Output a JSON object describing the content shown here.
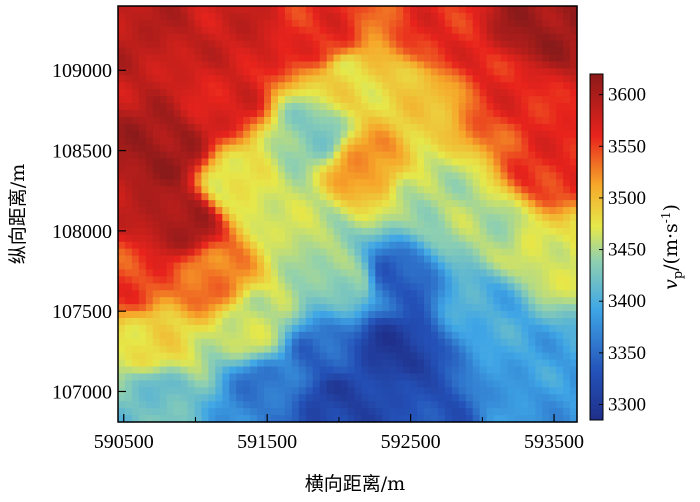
{
  "chart_data": {
    "type": "heatmap",
    "title": "",
    "xlabel": "横向距离/m",
    "ylabel": "纵向距离/m",
    "x_ticks": [
      590500,
      591500,
      592500,
      593500
    ],
    "y_ticks": [
      107000,
      107500,
      108000,
      108500,
      109000
    ],
    "xlim": [
      590460,
      593660
    ],
    "ylim": [
      106810,
      109400
    ],
    "colorbar": {
      "label_main": "v",
      "label_sub": "p",
      "label_unit": "/(m·s",
      "label_sup": "-1",
      "label_close": ")",
      "ticks": [
        3300,
        3350,
        3400,
        3450,
        3500,
        3550,
        3600
      ],
      "range": [
        3285,
        3620
      ]
    },
    "colors": {
      "high": "#8b1a1a",
      "mid_high": "#e8231c",
      "mid": "#f2e43a",
      "mid_low": "#4fc0e8",
      "low": "#1f2f8a"
    },
    "z_anchors": [
      {
        "x": 590700,
        "y": 109300,
        "v": 3590
      },
      {
        "x": 590800,
        "y": 108500,
        "v": 3610
      },
      {
        "x": 590900,
        "y": 108050,
        "v": 3605
      },
      {
        "x": 590600,
        "y": 107700,
        "v": 3550
      },
      {
        "x": 590700,
        "y": 107300,
        "v": 3480
      },
      {
        "x": 590700,
        "y": 106950,
        "v": 3420
      },
      {
        "x": 591300,
        "y": 109200,
        "v": 3580
      },
      {
        "x": 591200,
        "y": 108800,
        "v": 3570
      },
      {
        "x": 591300,
        "y": 108300,
        "v": 3470
      },
      {
        "x": 591100,
        "y": 107700,
        "v": 3530
      },
      {
        "x": 591400,
        "y": 107400,
        "v": 3460
      },
      {
        "x": 591500,
        "y": 107000,
        "v": 3360
      },
      {
        "x": 591900,
        "y": 109200,
        "v": 3560
      },
      {
        "x": 592100,
        "y": 108950,
        "v": 3480
      },
      {
        "x": 591800,
        "y": 108600,
        "v": 3430
      },
      {
        "x": 592200,
        "y": 108400,
        "v": 3520
      },
      {
        "x": 591700,
        "y": 108050,
        "v": 3460
      },
      {
        "x": 592050,
        "y": 107700,
        "v": 3440
      },
      {
        "x": 591900,
        "y": 107200,
        "v": 3345
      },
      {
        "x": 592000,
        "y": 106950,
        "v": 3310
      },
      {
        "x": 592700,
        "y": 109200,
        "v": 3560
      },
      {
        "x": 592500,
        "y": 108850,
        "v": 3490
      },
      {
        "x": 592600,
        "y": 108200,
        "v": 3450
      },
      {
        "x": 592400,
        "y": 107700,
        "v": 3340
      },
      {
        "x": 592400,
        "y": 107250,
        "v": 3300
      },
      {
        "x": 592600,
        "y": 106950,
        "v": 3330
      },
      {
        "x": 593400,
        "y": 109250,
        "v": 3610
      },
      {
        "x": 593200,
        "y": 108900,
        "v": 3560
      },
      {
        "x": 593500,
        "y": 108400,
        "v": 3560
      },
      {
        "x": 593000,
        "y": 108000,
        "v": 3450
      },
      {
        "x": 593500,
        "y": 107850,
        "v": 3470
      },
      {
        "x": 593000,
        "y": 107500,
        "v": 3400
      },
      {
        "x": 593300,
        "y": 107150,
        "v": 3390
      },
      {
        "x": 593400,
        "y": 106900,
        "v": 3380
      }
    ]
  }
}
